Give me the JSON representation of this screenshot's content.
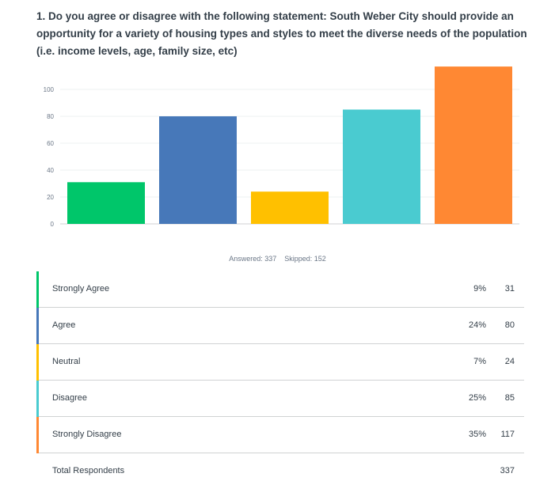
{
  "question": {
    "text": "1. Do you agree or disagree with the following statement: South Weber City should provide an opportunity for a variety of housing types and styles to meet the diverse needs of the population (i.e. income levels, age, family size, etc)"
  },
  "chart_data": {
    "type": "bar",
    "title": "",
    "xlabel": "",
    "ylabel": "",
    "categories": [
      "Strongly Agree",
      "Agree",
      "Neutral",
      "Disagree",
      "Strongly Disagree"
    ],
    "values": [
      31,
      80,
      24,
      85,
      117
    ],
    "colors": [
      "#00c66a",
      "#4778b9",
      "#ffc000",
      "#4acbd0",
      "#ff8833"
    ],
    "yticks": [
      0,
      20,
      40,
      60,
      80,
      100
    ],
    "ylim": [
      0,
      120
    ],
    "grid": true,
    "show_x_tick_labels": false
  },
  "summary": {
    "answered": "Answered: 337",
    "skipped": "Skipped: 152"
  },
  "results": {
    "rows": [
      {
        "label": "Strongly Agree",
        "percent": "9%",
        "count": "31",
        "color": "#00c66a"
      },
      {
        "label": "Agree",
        "percent": "24%",
        "count": "80",
        "color": "#4778b9"
      },
      {
        "label": "Neutral",
        "percent": "7%",
        "count": "24",
        "color": "#ffc000"
      },
      {
        "label": "Disagree",
        "percent": "25%",
        "count": "85",
        "color": "#4acbd0"
      },
      {
        "label": "Strongly Disagree",
        "percent": "35%",
        "count": "117",
        "color": "#ff8833"
      }
    ],
    "total_label": "Total Respondents",
    "total_count": "337"
  }
}
